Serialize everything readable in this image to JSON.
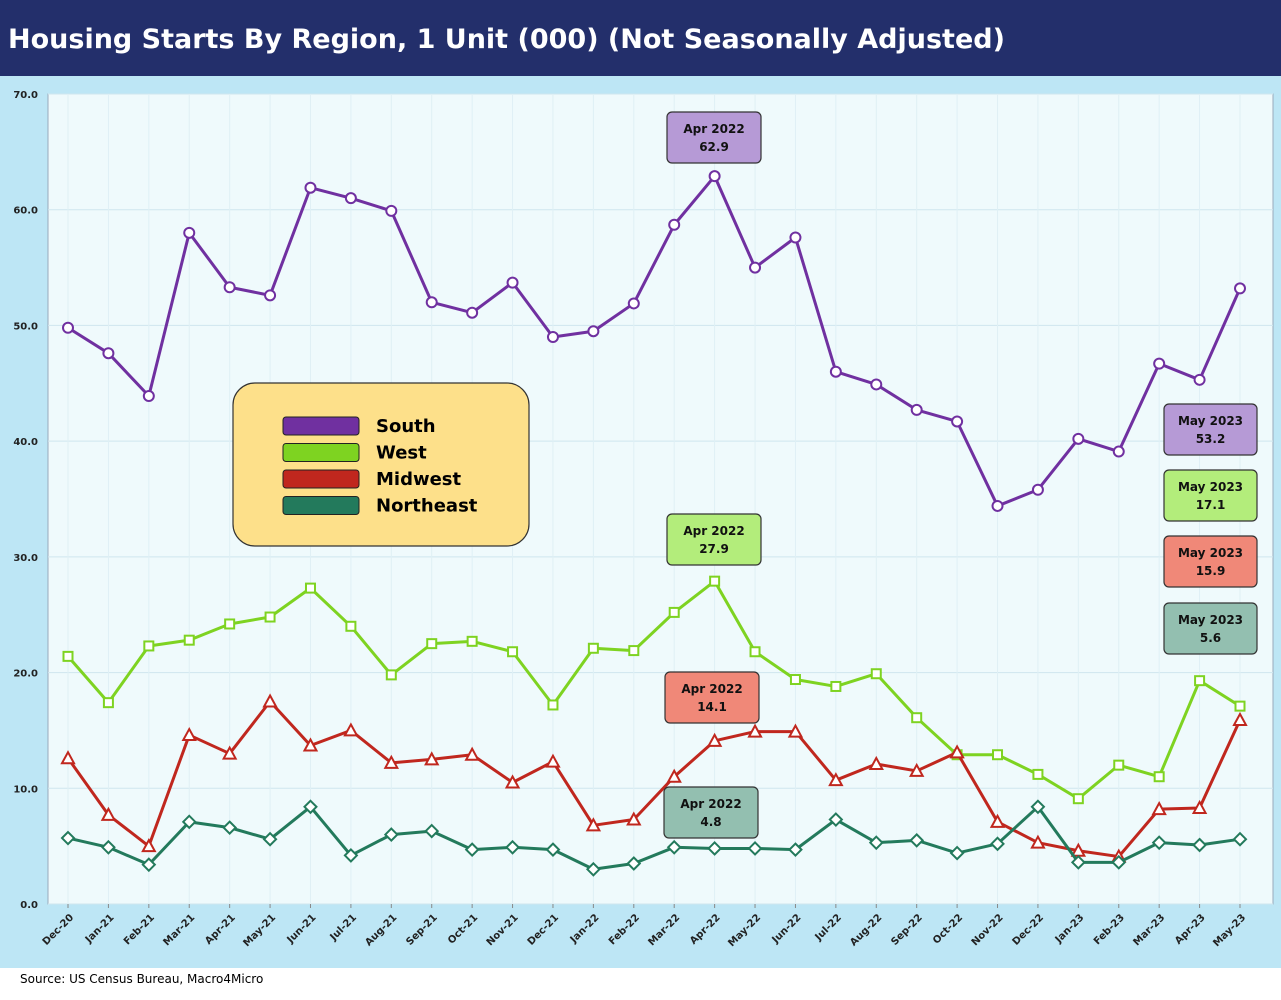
{
  "colors": {
    "header_bg": "#232f6b",
    "frame_bg": "#bde6f5",
    "plot_bg": "#effafc",
    "legend_bg": "#fde08a"
  },
  "chart_data": {
    "type": "line",
    "title": "Housing Starts By Region, 1 Unit (000) (Not Seasonally Adjusted)",
    "source": "Source: US Census Bureau, Macro4Micro",
    "ylim": [
      0,
      70
    ],
    "yticks": [
      "0.0",
      "10.0",
      "20.0",
      "30.0",
      "40.0",
      "50.0",
      "60.0",
      "70.0"
    ],
    "categories": [
      "Dec-20",
      "Jan-21",
      "Feb-21",
      "Mar-21",
      "Apr-21",
      "May-21",
      "Jun-21",
      "Jul-21",
      "Aug-21",
      "Sep-21",
      "Oct-21",
      "Nov-21",
      "Dec-21",
      "Jan-22",
      "Feb-22",
      "Mar-22",
      "Apr-22",
      "May-22",
      "Jun-22",
      "Jul-22",
      "Aug-22",
      "Sep-22",
      "Oct-22",
      "Nov-22",
      "Dec-22",
      "Jan-23",
      "Feb-23",
      "Mar-23",
      "Apr-23",
      "May-23"
    ],
    "series": [
      {
        "name": "South",
        "color": "#7030a0",
        "marker": "circle",
        "values": [
          49.8,
          47.6,
          43.9,
          58.0,
          53.3,
          52.6,
          61.9,
          61.0,
          59.9,
          52.0,
          51.1,
          53.7,
          49.0,
          49.5,
          51.9,
          58.7,
          62.9,
          55.0,
          57.6,
          46.0,
          44.9,
          42.7,
          41.7,
          34.4,
          35.8,
          40.2,
          39.1,
          46.7,
          45.3,
          53.2
        ]
      },
      {
        "name": "West",
        "color": "#7ed321",
        "marker": "square",
        "values": [
          21.4,
          17.4,
          22.3,
          22.8,
          24.2,
          24.8,
          27.3,
          24.0,
          19.8,
          22.5,
          22.7,
          21.8,
          17.2,
          22.1,
          21.9,
          25.2,
          27.9,
          21.8,
          19.4,
          18.8,
          19.9,
          16.1,
          12.9,
          12.9,
          11.2,
          9.1,
          12.0,
          11.0,
          19.3,
          17.1
        ]
      },
      {
        "name": "Midwest",
        "color": "#c0271e",
        "marker": "triangle",
        "values": [
          12.6,
          7.7,
          5.0,
          14.6,
          13.0,
          17.5,
          13.7,
          15.0,
          12.2,
          12.5,
          12.9,
          10.5,
          12.3,
          6.8,
          7.3,
          11.0,
          14.1,
          14.9,
          14.9,
          10.7,
          12.1,
          11.5,
          13.1,
          7.1,
          5.3,
          4.6,
          4.1,
          8.2,
          8.3,
          15.9
        ]
      },
      {
        "name": "Northeast",
        "color": "#237a5c",
        "marker": "diamond",
        "values": [
          5.7,
          4.9,
          3.4,
          7.1,
          6.6,
          5.6,
          8.4,
          4.2,
          6.0,
          6.3,
          4.7,
          4.9,
          4.7,
          3.0,
          3.5,
          4.9,
          4.8,
          4.8,
          4.7,
          7.3,
          5.3,
          5.5,
          4.4,
          5.2,
          8.4,
          3.6,
          3.6,
          5.3,
          5.1,
          5.6
        ]
      }
    ],
    "legend": {
      "position": "upper-left",
      "entries": [
        "South",
        "West",
        "Midwest",
        "Northeast"
      ]
    },
    "annotations": [
      {
        "series": "South",
        "label": "Apr 2022",
        "value": "62.9",
        "fill": "#b69ad6"
      },
      {
        "series": "West",
        "label": "Apr 2022",
        "value": "27.9",
        "fill": "#b3ed7b"
      },
      {
        "series": "Midwest",
        "label": "Apr 2022",
        "value": "14.1",
        "fill": "#f08878"
      },
      {
        "series": "Northeast",
        "label": "Apr 2022",
        "value": "4.8",
        "fill": "#93bfb0"
      },
      {
        "series": "South",
        "label": "May 2023",
        "value": "53.2",
        "fill": "#b69ad6"
      },
      {
        "series": "West",
        "label": "May 2023",
        "value": "17.1",
        "fill": "#b3ed7b"
      },
      {
        "series": "Midwest",
        "label": "May 2023",
        "value": "15.9",
        "fill": "#f08878"
      },
      {
        "series": "Northeast",
        "label": "May 2023",
        "value": "5.6",
        "fill": "#93bfb0"
      }
    ]
  }
}
